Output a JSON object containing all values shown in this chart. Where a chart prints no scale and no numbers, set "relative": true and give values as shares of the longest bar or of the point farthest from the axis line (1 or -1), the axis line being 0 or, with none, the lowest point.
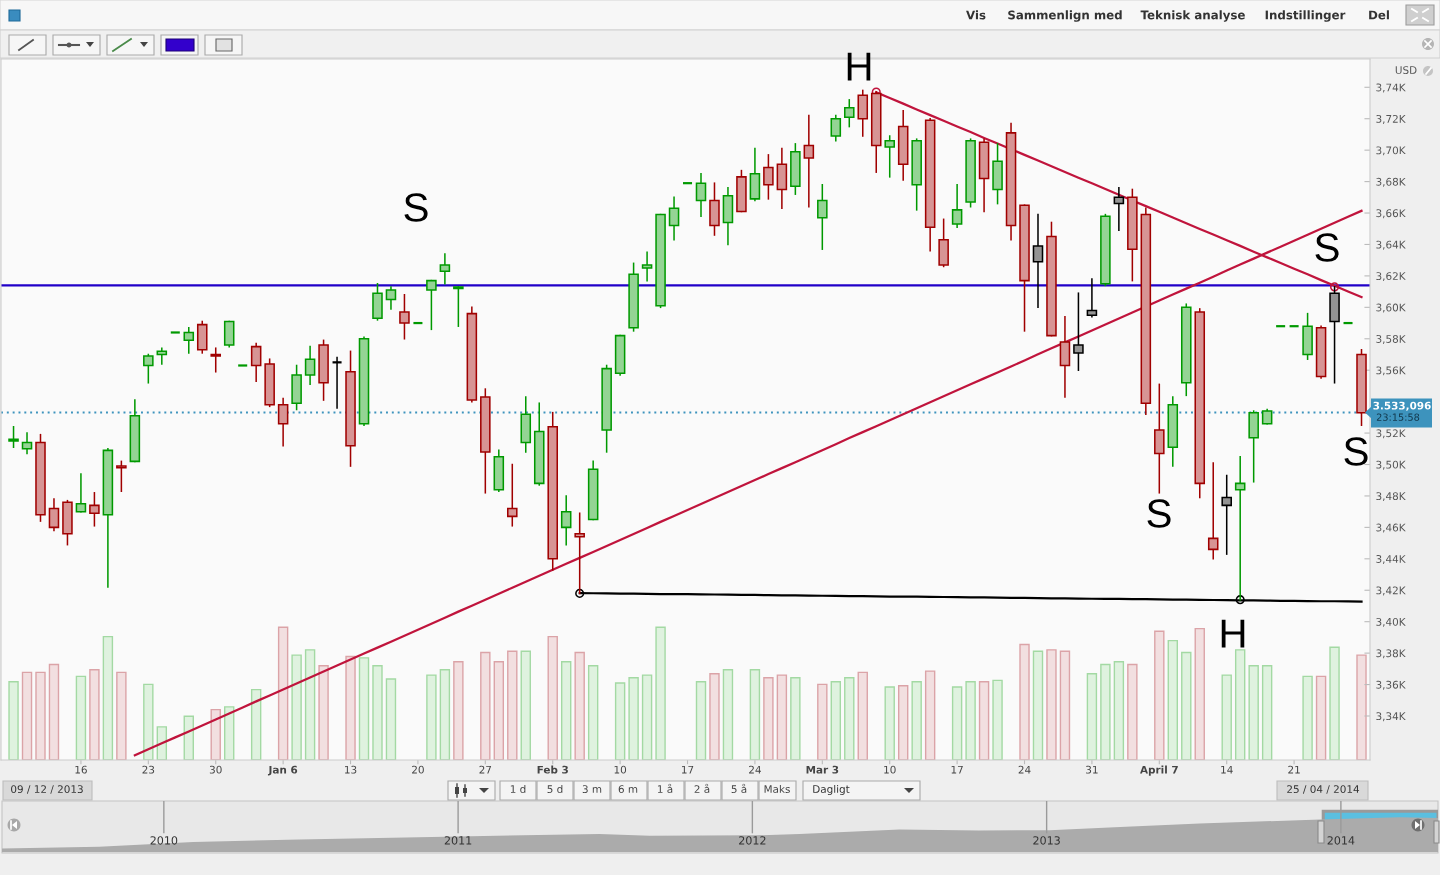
{
  "chart_data": [
    {
      "type": "candlestick",
      "ylabel": "USD",
      "categories": [
        null,
        null,
        null,
        null,
        null,
        "16",
        null,
        null,
        null,
        null,
        "23",
        null,
        null,
        null,
        null,
        "30",
        null,
        null,
        null,
        null,
        "Jan 6",
        null,
        null,
        null,
        null,
        "13",
        null,
        null,
        null,
        null,
        "20",
        null,
        null,
        null,
        null,
        "27",
        null,
        null,
        null,
        null,
        "Feb 3",
        null,
        null,
        null,
        null,
        "10",
        null,
        null,
        null,
        null,
        "17",
        null,
        null,
        null,
        null,
        "24",
        null,
        null,
        null,
        null,
        "Mar 3",
        null,
        null,
        null,
        null,
        "10",
        null,
        null,
        null,
        null,
        "17",
        null,
        null,
        null,
        null,
        "24",
        null,
        null,
        null,
        null,
        "31",
        null,
        null,
        null,
        null,
        "April 7",
        null,
        null,
        null,
        null,
        "14",
        null,
        null,
        null,
        null,
        "21",
        null,
        null,
        null,
        null,
        null
      ],
      "ohlc": [
        [
          3515,
          3524,
          3511,
          3516
        ],
        [
          3510,
          3520,
          3507,
          3514
        ],
        [
          3514,
          3519,
          3464,
          3468
        ],
        [
          3472,
          3478,
          3458,
          3460
        ],
        [
          3476,
          3477,
          3449,
          3456
        ],
        [
          3470,
          3494,
          3470,
          3475
        ],
        [
          3474,
          3482,
          3461,
          3469
        ],
        [
          3468,
          3510,
          3422,
          3509
        ],
        [
          3499,
          3502,
          3483,
          3498
        ],
        [
          3502,
          3541,
          3502,
          3531
        ],
        [
          3563,
          3570,
          3552,
          3569
        ],
        [
          3570,
          3574,
          3564,
          3572
        ],
        [
          3584,
          3584,
          3584,
          3584
        ],
        [
          3579,
          3587,
          3571,
          3584
        ],
        [
          3589,
          3591,
          3571,
          3573
        ],
        [
          3570,
          3574,
          3559,
          3569
        ],
        [
          3576,
          3591,
          3575,
          3591
        ],
        [
          3563,
          3563,
          3563,
          3563
        ],
        [
          3575,
          3577,
          3553,
          3563
        ],
        [
          3564,
          3567,
          3537,
          3538
        ],
        [
          3538,
          3542,
          3512,
          3526
        ],
        [
          3539,
          3563,
          3535,
          3557
        ],
        [
          3557,
          3575,
          3551,
          3567
        ],
        [
          3576,
          3579,
          3541,
          3552
        ],
        [
          3565,
          3568,
          3536,
          3565
        ],
        [
          3559,
          3572,
          3499,
          3512
        ],
        [
          3526,
          3581,
          3525,
          3580
        ],
        [
          3593,
          3615,
          3592,
          3609
        ],
        [
          3605,
          3613,
          3599,
          3611
        ],
        [
          3597,
          3608,
          3580,
          3590
        ],
        [
          3590,
          3590,
          3590,
          3590
        ],
        [
          3611,
          3617,
          3586,
          3617
        ],
        [
          3623,
          3634,
          3615,
          3627
        ],
        [
          3612,
          3613,
          3588,
          3613
        ],
        [
          3596,
          3600,
          3540,
          3541
        ],
        [
          3543,
          3548,
          3482,
          3508
        ],
        [
          3484,
          3509,
          3483,
          3505
        ],
        [
          3472,
          3500,
          3461,
          3467
        ],
        [
          3514,
          3543,
          3508,
          3532
        ],
        [
          3488,
          3539,
          3487,
          3521
        ],
        [
          3524,
          3533,
          3433,
          3440
        ],
        [
          3460,
          3480,
          3449,
          3470
        ],
        [
          3456,
          3469,
          3418,
          3454
        ],
        [
          3465,
          3502,
          3465,
          3497
        ],
        [
          3522,
          3563,
          3508,
          3561
        ],
        [
          3558,
          3582,
          3557,
          3582
        ],
        [
          3587,
          3628,
          3585,
          3621
        ],
        [
          3625,
          3635,
          3617,
          3627
        ],
        [
          3601,
          3659,
          3600,
          3659
        ],
        [
          3652,
          3670,
          3643,
          3663
        ],
        [
          3679,
          3679,
          3679,
          3679
        ],
        [
          3668,
          3685,
          3658,
          3679
        ],
        [
          3668,
          3679,
          3646,
          3652
        ],
        [
          3654,
          3676,
          3640,
          3671
        ],
        [
          3683,
          3687,
          3661,
          3661
        ],
        [
          3669,
          3701,
          3668,
          3685
        ],
        [
          3689,
          3697,
          3669,
          3678
        ],
        [
          3691,
          3701,
          3663,
          3675
        ],
        [
          3677,
          3704,
          3672,
          3699
        ],
        [
          3703,
          3722,
          3664,
          3695
        ],
        [
          3657,
          3678,
          3637,
          3668
        ],
        [
          3709,
          3722,
          3706,
          3720
        ],
        [
          3721,
          3732,
          3715,
          3727
        ],
        [
          3735,
          3738,
          3709,
          3720
        ],
        [
          3736,
          3737,
          3686,
          3703
        ],
        [
          3702,
          3709,
          3683,
          3706
        ],
        [
          3715,
          3725,
          3681,
          3691
        ],
        [
          3678,
          3707,
          3662,
          3706
        ],
        [
          3719,
          3720,
          3636,
          3651
        ],
        [
          3643,
          3656,
          3626,
          3627
        ],
        [
          3653,
          3678,
          3651,
          3662
        ],
        [
          3667,
          3707,
          3664,
          3706
        ],
        [
          3705,
          3707,
          3661,
          3682
        ],
        [
          3675,
          3704,
          3666,
          3693
        ],
        [
          3711,
          3717,
          3643,
          3652
        ],
        [
          3665,
          3665,
          3585,
          3617
        ],
        [
          3639,
          3659,
          3600,
          3629
        ],
        [
          3645,
          3654,
          3582,
          3582
        ],
        [
          3578,
          3594,
          3543,
          3563
        ],
        [
          3576,
          3609,
          3560,
          3571
        ],
        [
          3598,
          3618,
          3594,
          3595
        ],
        [
          3615,
          3659,
          3614,
          3658
        ],
        [
          3670,
          3676,
          3649,
          3666
        ],
        [
          3670,
          3675,
          3617,
          3637
        ],
        [
          3659,
          3663,
          3532,
          3539
        ],
        [
          3522,
          3551,
          3482,
          3507
        ],
        [
          3511,
          3543,
          3499,
          3538
        ],
        [
          3552,
          3602,
          3544,
          3600
        ],
        [
          3597,
          3599,
          3479,
          3488
        ],
        [
          3453,
          3501,
          3440,
          3446
        ],
        [
          3479,
          3493,
          3443,
          3474
        ],
        [
          3484,
          3505,
          3414,
          3488
        ],
        [
          3517,
          3534,
          3489,
          3533
        ],
        [
          3526,
          3535,
          3526,
          3534
        ],
        [
          3588,
          3588,
          3588,
          3588
        ],
        [
          3588,
          3588,
          3588,
          3588
        ],
        [
          3570,
          3596,
          3567,
          3588
        ],
        [
          3587,
          3588,
          3555,
          3556
        ],
        [
          3609,
          3613,
          3552,
          3591
        ],
        [
          3590,
          3590,
          3590,
          3590
        ],
        [
          3570,
          3573,
          3525,
          3533
        ]
      ],
      "colors": [
        "#009900",
        "#009900",
        "#a00000",
        "#a00000",
        "#a00000",
        "#009900",
        "#a00000",
        "#009900",
        "#a00000",
        "#009900",
        "#009900",
        "#009900",
        "#009900",
        "#009900",
        "#a00000",
        "#a00000",
        "#009900",
        "#009900",
        "#a00000",
        "#a00000",
        "#a00000",
        "#009900",
        "#009900",
        "#a00000",
        "#000000",
        "#a00000",
        "#009900",
        "#009900",
        "#009900",
        "#a00000",
        "#009900",
        "#009900",
        "#009900",
        "#009900",
        "#a00000",
        "#a00000",
        "#009900",
        "#a00000",
        "#009900",
        "#009900",
        "#a00000",
        "#009900",
        "#a00000",
        "#009900",
        "#009900",
        "#009900",
        "#009900",
        "#009900",
        "#009900",
        "#009900",
        "#009900",
        "#009900",
        "#a00000",
        "#009900",
        "#a00000",
        "#009900",
        "#a00000",
        "#a00000",
        "#009900",
        "#a00000",
        "#009900",
        "#009900",
        "#009900",
        "#a00000",
        "#a00000",
        "#009900",
        "#a00000",
        "#009900",
        "#a00000",
        "#a00000",
        "#009900",
        "#009900",
        "#a00000",
        "#009900",
        "#a00000",
        "#a00000",
        "#000000",
        "#a00000",
        "#a00000",
        "#000000",
        "#000000",
        "#009900",
        "#000000",
        "#a00000",
        "#a00000",
        "#a00000",
        "#009900",
        "#009900",
        "#a00000",
        "#a00000",
        "#000000",
        "#009900",
        "#009900",
        "#009900",
        "#009900",
        "#009900",
        "#009900",
        "#a00000",
        "#000000",
        "#009900",
        "#a00000"
      ],
      "series": [
        {
          "type": "line",
          "color": "#c0143c",
          "values": [
            null,
            null,
            null,
            null,
            null,
            null,
            null,
            null,
            null,
            3315.0,
            3318.8,
            3322.6,
            3326.4,
            3330.2,
            3334.0,
            3337.8,
            3341.6,
            3345.4,
            3349.3,
            3353.1,
            3356.9,
            3360.7,
            3364.5,
            3368.3,
            3372.1,
            3375.9,
            3379.7,
            3383.5,
            3387.3,
            3391.1,
            3394.9,
            3398.7,
            3402.5,
            3406.4,
            3410.2,
            3414.0,
            3417.8,
            3421.6,
            3425.4,
            3429.2,
            3433.0,
            3436.8,
            3440.6,
            3444.4,
            3448.2,
            3452.0,
            3455.8,
            3459.6,
            3463.5,
            3467.3,
            3471.1,
            3474.9,
            3478.7,
            3482.5,
            3486.3,
            3490.1,
            3493.9,
            3497.7,
            3501.5,
            3505.3,
            3509.1,
            3512.9,
            3516.8,
            3520.6,
            3524.4,
            3528.2,
            3532.0,
            3535.8,
            3539.6,
            3543.4,
            3547.2,
            3551.0,
            3554.8,
            3558.6,
            3562.4,
            3566.2,
            3570.1,
            3573.9,
            3577.7,
            3581.5,
            3585.3,
            3589.1,
            3592.9,
            3596.7,
            3600.5,
            3604.3,
            3608.1,
            3611.9,
            3615.7,
            3619.5,
            3623.4,
            3627.2,
            3631.0,
            3634.8,
            3638.6,
            3642.4,
            3646.2,
            3650.0,
            3653.8,
            3657.6,
            3661.4
          ]
        },
        {
          "type": "line",
          "color": "#c0143c",
          "values": [
            null,
            null,
            null,
            null,
            null,
            null,
            null,
            null,
            null,
            null,
            null,
            null,
            null,
            null,
            null,
            null,
            null,
            null,
            null,
            null,
            null,
            null,
            null,
            null,
            null,
            null,
            null,
            null,
            null,
            null,
            null,
            null,
            null,
            null,
            null,
            null,
            null,
            null,
            null,
            null,
            null,
            null,
            null,
            null,
            null,
            null,
            null,
            null,
            null,
            null,
            null,
            null,
            null,
            null,
            null,
            null,
            null,
            null,
            null,
            null,
            null,
            null,
            null,
            null,
            3736.8,
            3733.2,
            3729.6,
            3725.9,
            3722.3,
            3718.7,
            3715.1,
            3711.5,
            3707.8,
            3704.2,
            3700.6,
            3697.0,
            3693.4,
            3689.7,
            3686.1,
            3682.5,
            3678.9,
            3675.3,
            3671.6,
            3668.0,
            3664.4,
            3660.8,
            3657.2,
            3653.5,
            3649.9,
            3646.3,
            3642.7,
            3639.1,
            3635.4,
            3631.8,
            3628.2,
            3624.6,
            3621.0,
            3617.3,
            3613.7,
            3610.1,
            3606.5
          ]
        },
        {
          "type": "line",
          "color": "#000000",
          "values": [
            null,
            null,
            null,
            null,
            null,
            null,
            null,
            null,
            null,
            null,
            null,
            null,
            null,
            null,
            null,
            null,
            null,
            null,
            null,
            null,
            null,
            null,
            null,
            null,
            null,
            null,
            null,
            null,
            null,
            null,
            null,
            null,
            null,
            null,
            null,
            null,
            null,
            null,
            null,
            null,
            null,
            null,
            3418.2,
            3418.1,
            3418.0,
            3417.9,
            3417.8,
            3417.7,
            3417.6,
            3417.5,
            3417.5,
            3417.4,
            3417.3,
            3417.2,
            3417.1,
            3417.0,
            3416.9,
            3416.8,
            3416.7,
            3416.6,
            3416.5,
            3416.4,
            3416.3,
            3416.2,
            3416.1,
            3416.0,
            3416.0,
            3415.9,
            3415.8,
            3415.7,
            3415.6,
            3415.5,
            3415.4,
            3415.3,
            3415.2,
            3415.1,
            3415.0,
            3414.9,
            3414.8,
            3414.7,
            3414.6,
            3414.5,
            3414.5,
            3414.4,
            3414.3,
            3414.2,
            3414.1,
            3414.0,
            3413.9,
            3413.8,
            3413.7,
            3413.6,
            3413.5,
            3413.4,
            3413.3,
            3413.2,
            3413.1,
            3413.0,
            3413.0,
            3412.9,
            3412.8
          ]
        },
        {
          "type": "scatter",
          "color": "#c0143c",
          "marker": "circle",
          "values": [
            null,
            null,
            null,
            null,
            null,
            null,
            null,
            null,
            null,
            null,
            null,
            null,
            null,
            null,
            null,
            null,
            null,
            null,
            null,
            null,
            null,
            null,
            null,
            null,
            null,
            null,
            null,
            null,
            null,
            null,
            null,
            null,
            null,
            null,
            null,
            null,
            null,
            null,
            null,
            null,
            null,
            null,
            null,
            null,
            null,
            null,
            null,
            null,
            null,
            null,
            null,
            null,
            null,
            null,
            null,
            null,
            null,
            null,
            null,
            null,
            null,
            null,
            null,
            null,
            3737,
            null,
            null,
            null,
            null,
            null,
            null,
            null,
            null,
            null,
            null,
            null,
            null,
            null,
            null,
            null,
            null,
            null,
            null,
            null,
            null,
            null,
            null,
            null,
            null,
            null,
            null,
            null,
            null,
            null,
            null,
            null,
            null,
            null,
            3613,
            null,
            null
          ]
        },
        {
          "type": "scatter",
          "color": "#000000",
          "marker": "circle",
          "values": [
            null,
            null,
            null,
            null,
            null,
            null,
            null,
            null,
            null,
            null,
            null,
            null,
            null,
            null,
            null,
            null,
            null,
            null,
            null,
            null,
            null,
            null,
            null,
            null,
            null,
            null,
            null,
            null,
            null,
            null,
            null,
            null,
            null,
            null,
            null,
            null,
            null,
            null,
            null,
            null,
            null,
            null,
            3418,
            null,
            null,
            null,
            null,
            null,
            null,
            null,
            null,
            null,
            null,
            null,
            null,
            null,
            null,
            null,
            null,
            null,
            null,
            null,
            null,
            null,
            null,
            null,
            null,
            null,
            null,
            null,
            null,
            null,
            null,
            null,
            null,
            null,
            null,
            null,
            null,
            null,
            null,
            null,
            null,
            null,
            null,
            null,
            null,
            null,
            null,
            null,
            null,
            3414,
            null,
            null,
            null,
            null,
            null,
            null,
            null,
            null,
            null
          ]
        }
      ],
      "ylim": [
        3312,
        3758
      ],
      "yticks": [
        {
          "value": 3340,
          "label": "3,34K"
        },
        {
          "value": 3360,
          "label": "3,36K"
        },
        {
          "value": 3380,
          "label": "3,38K"
        },
        {
          "value": 3400,
          "label": "3,40K"
        },
        {
          "value": 3420,
          "label": "3,42K"
        },
        {
          "value": 3440,
          "label": "3,44K"
        },
        {
          "value": 3460,
          "label": "3,46K"
        },
        {
          "value": 3480,
          "label": "3,48K"
        },
        {
          "value": 3500,
          "label": "3,50K"
        },
        {
          "value": 3520,
          "label": "3,52K"
        },
        {
          "value": 3560,
          "label": "3,56K"
        },
        {
          "value": 3580,
          "label": "3,58K"
        },
        {
          "value": 3600,
          "label": "3,60K"
        },
        {
          "value": 3620,
          "label": "3,62K"
        },
        {
          "value": 3640,
          "label": "3,64K"
        },
        {
          "value": 3660,
          "label": "3,66K"
        },
        {
          "value": 3680,
          "label": "3,68K"
        },
        {
          "value": 3700,
          "label": "3,70K"
        },
        {
          "value": 3720,
          "label": "3,72K"
        },
        {
          "value": 3740,
          "label": "3,74K"
        }
      ],
      "ref_lines": [
        {
          "axis": "y",
          "value": 3614,
          "color": "#2000c8"
        },
        {
          "axis": "y",
          "value": 3533.096,
          "label": "3.533,096",
          "color": "#3d93bd",
          "line_style": "dotted"
        }
      ],
      "annotations": [
        "S",
        "H",
        "S",
        "S",
        "H",
        "S",
        "23:15:58"
      ]
    },
    {
      "type": "bar",
      "relative": true,
      "tick_labels": false,
      "categories": [
        null,
        null,
        null,
        null,
        null,
        null,
        null,
        null,
        null,
        null,
        null,
        null,
        null,
        null,
        null,
        null,
        null,
        null,
        null,
        null,
        null,
        null,
        null,
        null,
        null,
        null,
        null,
        null,
        null,
        null,
        null,
        null,
        null,
        null,
        null,
        null,
        null,
        null,
        null,
        null,
        null,
        null,
        null,
        null,
        null,
        null,
        null,
        null,
        null,
        null,
        null,
        null,
        null,
        null,
        null,
        null,
        null,
        null,
        null,
        null,
        null,
        null,
        null,
        null,
        null,
        null,
        null,
        null,
        null,
        null,
        null,
        null,
        null,
        null,
        null,
        null,
        null,
        null,
        null,
        null,
        null,
        null,
        null,
        null,
        null,
        null,
        null,
        null,
        null,
        null,
        null,
        null,
        null,
        null,
        null,
        null,
        null,
        null,
        null,
        null,
        null
      ],
      "values": [
        0.59,
        0.66,
        0.66,
        0.72,
        null,
        0.63,
        0.68,
        0.93,
        0.66,
        null,
        0.57,
        0.25,
        null,
        0.33,
        null,
        0.38,
        0.4,
        null,
        0.53,
        null,
        1.0,
        0.79,
        0.83,
        0.71,
        null,
        0.78,
        0.77,
        0.71,
        0.61,
        null,
        null,
        0.64,
        0.68,
        0.74,
        null,
        0.81,
        0.74,
        0.82,
        0.82,
        null,
        0.93,
        0.74,
        0.81,
        0.71,
        null,
        0.58,
        0.62,
        0.64,
        1.0,
        null,
        null,
        0.59,
        0.65,
        0.68,
        null,
        0.68,
        0.62,
        0.64,
        0.62,
        null,
        0.57,
        0.59,
        0.62,
        0.66,
        null,
        0.55,
        0.56,
        0.59,
        0.67,
        null,
        0.55,
        0.59,
        0.59,
        0.6,
        null,
        0.87,
        0.82,
        0.83,
        0.82,
        null,
        0.65,
        0.72,
        0.74,
        0.72,
        null,
        0.97,
        0.9,
        0.81,
        0.99,
        null,
        0.64,
        0.83,
        0.71,
        0.71,
        null,
        null,
        0.63,
        0.63,
        0.85,
        null,
        0.79
      ],
      "colors": [
        "#a3d9a3",
        "#dba3a7",
        "#dba3a7",
        "#dba3a7",
        null,
        "#a3d9a3",
        "#dba3a7",
        "#a3d9a3",
        "#dba3a7",
        null,
        "#a3d9a3",
        "#a3d9a3",
        null,
        "#a3d9a3",
        null,
        "#dba3a7",
        "#a3d9a3",
        null,
        "#a3d9a3",
        null,
        "#dba3a7",
        "#a3d9a3",
        "#a3d9a3",
        "#dba3a7",
        null,
        "#dba3a7",
        "#a3d9a3",
        "#a3d9a3",
        "#a3d9a3",
        null,
        null,
        "#a3d9a3",
        "#a3d9a3",
        "#dba3a7",
        null,
        "#dba3a7",
        "#dba3a7",
        "#dba3a7",
        "#a3d9a3",
        null,
        "#dba3a7",
        "#a3d9a3",
        "#dba3a7",
        "#a3d9a3",
        null,
        "#a3d9a3",
        "#a3d9a3",
        "#a3d9a3",
        "#a3d9a3",
        null,
        null,
        "#a3d9a3",
        "#dba3a7",
        "#a3d9a3",
        null,
        "#a3d9a3",
        "#dba3a7",
        "#dba3a7",
        "#a3d9a3",
        null,
        "#dba3a7",
        "#a3d9a3",
        "#a3d9a3",
        "#dba3a7",
        null,
        "#a3d9a3",
        "#dba3a7",
        "#a3d9a3",
        "#dba3a7",
        null,
        "#a3d9a3",
        "#a3d9a3",
        "#dba3a7",
        "#a3d9a3",
        null,
        "#dba3a7",
        "#a3d9a3",
        "#dba3a7",
        "#dba3a7",
        null,
        "#a3d9a3",
        "#a3d9a3",
        "#a3d9a3",
        "#dba3a7",
        null,
        "#dba3a7",
        "#a3d9a3",
        "#a3d9a3",
        "#dba3a7",
        null,
        "#a3d9a3",
        "#a3d9a3",
        "#a3d9a3",
        "#a3d9a3",
        null,
        null,
        "#a3d9a3",
        "#dba3a7",
        "#a3d9a3",
        null,
        "#dba3a7"
      ]
    },
    {
      "type": "area",
      "relative": true,
      "tick_labels": "x",
      "grid": "x",
      "color": "#ababab",
      "x": [
        2009.45,
        2009.78,
        2010.1,
        2010.46,
        2011.0,
        2011.48,
        2011.65,
        2012.01,
        2012.16,
        2012.5,
        2012.77,
        2013.01,
        2013.25,
        2013.52,
        2013.93,
        2014.2,
        2014.33
      ],
      "values": [
        0.1,
        0.15,
        0.29,
        0.36,
        0.45,
        0.52,
        0.47,
        0.48,
        0.52,
        0.65,
        0.62,
        0.63,
        0.72,
        0.82,
        0.94,
        1.0,
        0.98
      ],
      "bands": [
        {
          "axis": "x",
          "from": 2013.94,
          "to": 2014.33,
          "color": "#5bbfe0"
        }
      ],
      "xlim": [
        2009.45,
        2014.33
      ],
      "xticks": [
        2010,
        2011,
        2012,
        2013,
        2014
      ]
    },
    {
      "type": "other",
      "annotations": [
        "Vis",
        "Sammenlign med",
        "Teknisk analyse",
        "Indstillinger",
        "Del",
        "1 d",
        "5 d",
        "3 m",
        "6 m",
        "1 å",
        "2 å",
        "5 å",
        "Maks",
        "Dagligt",
        "09 / 12 / 2013",
        "25 / 04 / 2014"
      ]
    }
  ]
}
